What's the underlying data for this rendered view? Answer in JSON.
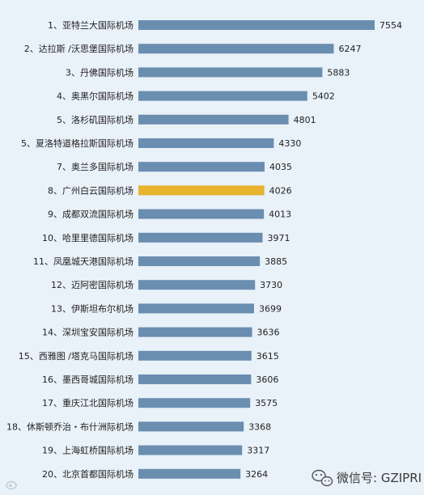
{
  "chart_data": {
    "type": "bar",
    "orientation": "horizontal",
    "categories": [
      "1、亚特兰大国际机场",
      "2、达拉斯 /沃思堡国际机场",
      "3、丹佛国际机场",
      "4、奥黑尔国际机场",
      "5、洛杉矶国际机场",
      "5、夏洛特道格拉斯国际机场",
      "7、奥兰多国际机场",
      "8、广州白云国际机场",
      "9、成都双流国际机场",
      "10、哈里里德国际机场",
      "11、凤凰城天港国际机场",
      "12、迈阿密国际机场",
      "13、伊斯坦布尔机场",
      "14、深圳宝安国际机场",
      "15、西雅图 /塔克马国际机场",
      "16、墨西哥城国际机场",
      "17、重庆江北国际机场",
      "18、休斯顿乔治・布什洲际机场",
      "19、上海虹桥国际机场",
      "20、北京首都国际机场"
    ],
    "values": [
      7554,
      6247,
      5883,
      5402,
      4801,
      4330,
      4035,
      4026,
      4013,
      3971,
      3885,
      3730,
      3699,
      3636,
      3615,
      3606,
      3575,
      3368,
      3317,
      3264
    ],
    "highlight_index": 7,
    "xlim": [
      0,
      7554
    ],
    "grid": false,
    "colors": {
      "bar": "#6a8eb0",
      "highlight": "#e8b430",
      "background": "#e9f1f9"
    }
  },
  "watermark": {
    "text": "微信号: GZIPRI",
    "icon": "wechat-icon",
    "left_icon": "weibo-icon"
  }
}
